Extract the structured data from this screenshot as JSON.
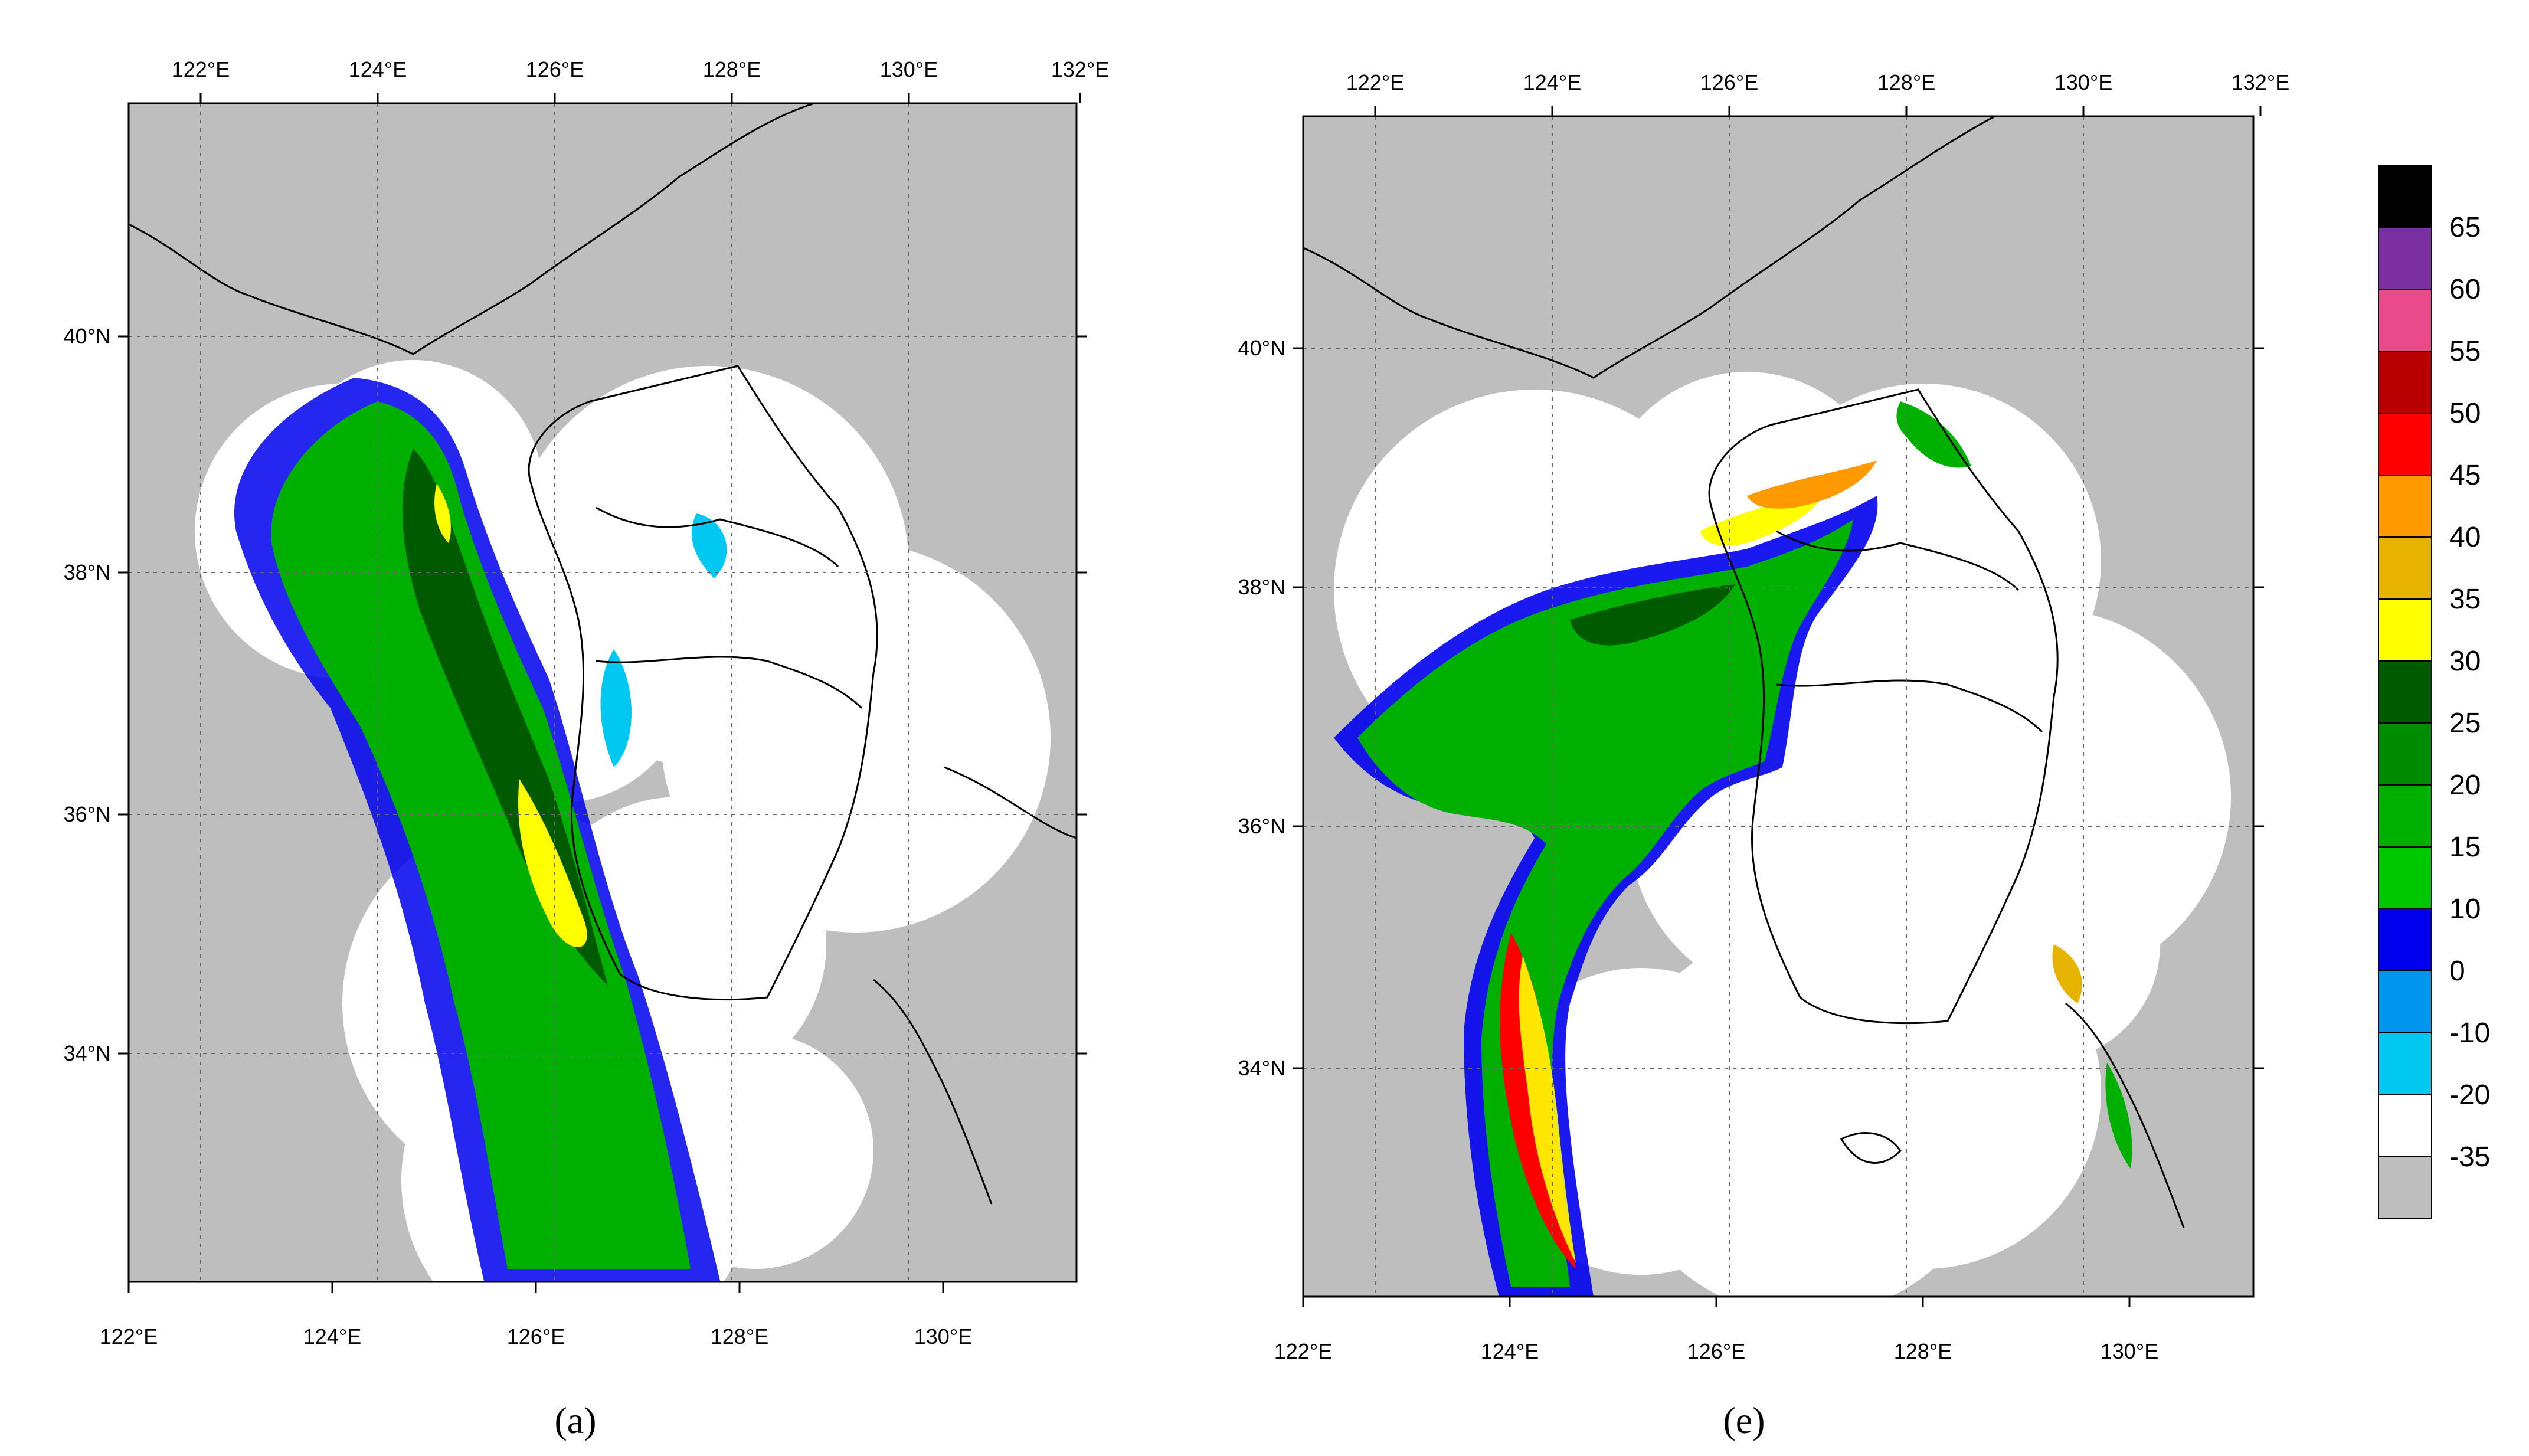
{
  "panels": [
    {
      "id": "a",
      "caption": "(a)",
      "top_lon_labels": [
        "122°E",
        "124°E",
        "126°E",
        "128°E",
        "130°E",
        "132°E"
      ],
      "bottom_lon_labels": [
        "122°E",
        "124°E",
        "126°E",
        "128°E",
        "130°E"
      ],
      "lat_labels": [
        "40°N",
        "38°N",
        "36°N",
        "34°N"
      ]
    },
    {
      "id": "e",
      "caption": "(e)",
      "top_lon_labels": [
        "122°E",
        "124°E",
        "126°E",
        "128°E",
        "130°E",
        "132°E"
      ],
      "bottom_lon_labels": [
        "122°E",
        "124°E",
        "126°E",
        "128°E",
        "130°E"
      ],
      "lat_labels": [
        "40°N",
        "38°N",
        "36°N",
        "34°N"
      ]
    }
  ],
  "colorbar": {
    "levels": [
      "65",
      "60",
      "55",
      "50",
      "45",
      "40",
      "35",
      "30",
      "25",
      "20",
      "15",
      "10",
      "0",
      "-10",
      "-20",
      "-35"
    ],
    "colors": [
      "#000000",
      "#7b2fa0",
      "#e84a8c",
      "#b80000",
      "#ff0000",
      "#ff9900",
      "#e6b400",
      "#ffff00",
      "#005a00",
      "#008c00",
      "#00b000",
      "#00c800",
      "#0000ee",
      "#0096ee",
      "#00c8f0",
      "#ffffff",
      "#bebebe"
    ]
  },
  "colors": {
    "land_bg": "#bebebe",
    "radar_coverage": "#ffffff",
    "grid": "#666666"
  }
}
